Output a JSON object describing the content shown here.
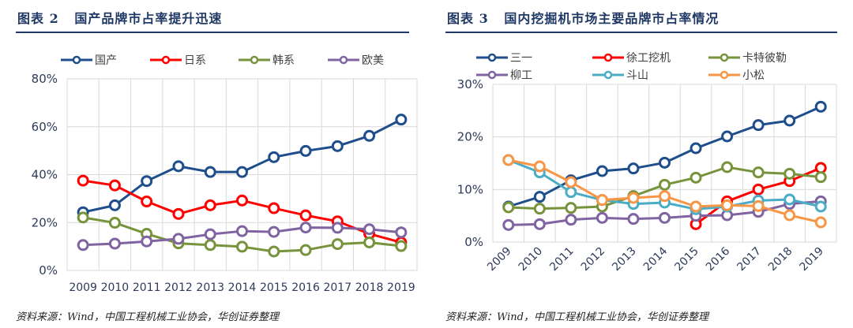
{
  "chart_data": [
    {
      "type": "line",
      "title": "图表 2   国产品牌市占率提升迅速",
      "source": "资料来源：Wind，中国工程机械工业协会，华创证券整理",
      "categories": [
        "2009",
        "2010",
        "2011",
        "2012",
        "2013",
        "2014",
        "2015",
        "2016",
        "2017",
        "2018",
        "2019"
      ],
      "ylim": [
        0,
        80
      ],
      "yticks": [
        "0%",
        "20%",
        "40%",
        "60%",
        "80%"
      ],
      "ytick_values": [
        0,
        20,
        40,
        60,
        80
      ],
      "grid": true,
      "legend": "top",
      "series": [
        {
          "name": "国产",
          "color": "#1f4e8c",
          "values": [
            24.3,
            27.2,
            37.3,
            43.5,
            41.1,
            41.1,
            47.3,
            49.9,
            51.9,
            56.2,
            63.0
          ]
        },
        {
          "name": "日系",
          "color": "#ff0000",
          "values": [
            37.5,
            35.5,
            28.8,
            23.6,
            27.2,
            29.2,
            26.0,
            23.0,
            20.5,
            15.3,
            11.7
          ]
        },
        {
          "name": "韩系",
          "color": "#77933c",
          "values": [
            22.1,
            19.9,
            15.3,
            11.3,
            10.6,
            9.9,
            7.9,
            8.5,
            11.0,
            11.7,
            10.2
          ]
        },
        {
          "name": "欧美",
          "color": "#8064a2",
          "values": [
            10.6,
            11.2,
            12.1,
            13.2,
            15.1,
            16.4,
            16.1,
            17.9,
            17.8,
            17.2,
            15.9
          ]
        }
      ]
    },
    {
      "type": "line",
      "title": "图表 3   国内挖掘机市场主要品牌市占率情况",
      "source": "资料来源：Wind，中国工程机械工业协会，华创证券整理",
      "categories": [
        "2009",
        "2010",
        "2011",
        "2012",
        "2013",
        "2014",
        "2015",
        "2016",
        "2017",
        "2018",
        "2019"
      ],
      "ylim": [
        0,
        30
      ],
      "yticks": [
        "0%",
        "10%",
        "20%",
        "30%"
      ],
      "ytick_values": [
        0,
        10,
        20,
        30
      ],
      "grid": true,
      "legend": "top",
      "series": [
        {
          "name": "三一",
          "color": "#1f4e8c",
          "values": [
            6.75,
            8.6,
            11.75,
            13.5,
            14.0,
            15.1,
            17.85,
            20.1,
            22.25,
            23.1,
            25.75
          ]
        },
        {
          "name": "徐工挖机",
          "color": "#ff0000",
          "values": [
            null,
            null,
            null,
            null,
            null,
            null,
            3.4,
            7.75,
            10.0,
            11.6,
            14.1
          ]
        },
        {
          "name": "卡特彼勒",
          "color": "#77933c",
          "values": [
            6.6,
            6.35,
            6.5,
            6.75,
            8.75,
            10.9,
            12.25,
            14.25,
            13.25,
            13.0,
            12.35
          ]
        },
        {
          "name": "柳工",
          "color": "#8064a2",
          "values": [
            3.25,
            3.4,
            4.25,
            4.6,
            4.4,
            4.6,
            5.0,
            5.1,
            5.75,
            7.25,
            7.75
          ]
        },
        {
          "name": "斗山",
          "color": "#4bacc6",
          "values": [
            15.6,
            13.25,
            9.5,
            8.0,
            7.25,
            7.5,
            6.25,
            6.75,
            7.9,
            8.1,
            6.75
          ]
        },
        {
          "name": "小松",
          "color": "#f79646",
          "values": [
            15.6,
            14.4,
            11.4,
            8.0,
            8.4,
            8.75,
            6.75,
            7.0,
            6.85,
            5.1,
            3.75
          ]
        }
      ]
    }
  ]
}
